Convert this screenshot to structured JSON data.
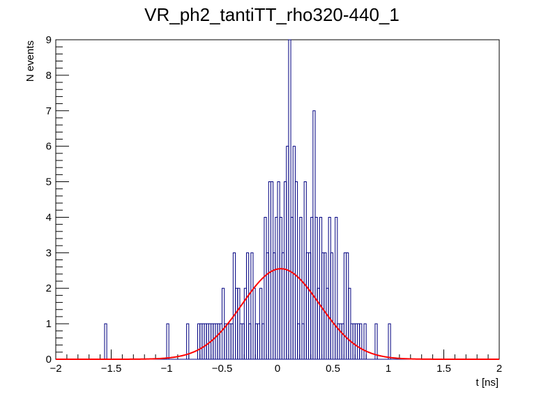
{
  "chart_data": {
    "type": "histogram",
    "title": "VR_ph2_tantiTT_rho320-440_1",
    "xlabel": "t [ns]",
    "ylabel": "N events",
    "xlim": [
      -2,
      2
    ],
    "ylim": [
      0,
      9
    ],
    "x_ticks": [
      -2,
      -1.5,
      -1,
      -0.5,
      0,
      0.5,
      1,
      1.5,
      2
    ],
    "x_tick_labels": [
      "−2",
      "−1.5",
      "−1",
      "−0.5",
      "0",
      "0.5",
      "1",
      "1.5",
      "2"
    ],
    "y_ticks": [
      0,
      1,
      2,
      3,
      4,
      5,
      6,
      7,
      8,
      9
    ],
    "y_tick_labels": [
      "0",
      "1",
      "2",
      "3",
      "4",
      "5",
      "6",
      "7",
      "8",
      "9"
    ],
    "bin_width": 0.02,
    "histogram": {
      "name": "data",
      "color": "#000080",
      "bins": [
        [
          -1.56,
          1
        ],
        [
          -1.0,
          1
        ],
        [
          -0.82,
          1
        ],
        [
          -0.72,
          1
        ],
        [
          -0.7,
          1
        ],
        [
          -0.68,
          1
        ],
        [
          -0.66,
          1
        ],
        [
          -0.64,
          1
        ],
        [
          -0.62,
          1
        ],
        [
          -0.6,
          1
        ],
        [
          -0.58,
          1
        ],
        [
          -0.56,
          1
        ],
        [
          -0.54,
          1
        ],
        [
          -0.52,
          1
        ],
        [
          -0.5,
          2
        ],
        [
          -0.48,
          1
        ],
        [
          -0.46,
          1
        ],
        [
          -0.44,
          1
        ],
        [
          -0.42,
          1
        ],
        [
          -0.4,
          3
        ],
        [
          -0.38,
          2
        ],
        [
          -0.36,
          2
        ],
        [
          -0.34,
          1
        ],
        [
          -0.32,
          1
        ],
        [
          -0.3,
          2
        ],
        [
          -0.28,
          3
        ],
        [
          -0.26,
          1
        ],
        [
          -0.24,
          3
        ],
        [
          -0.22,
          2
        ],
        [
          -0.2,
          1
        ],
        [
          -0.18,
          1
        ],
        [
          -0.16,
          2
        ],
        [
          -0.14,
          1
        ],
        [
          -0.12,
          4
        ],
        [
          -0.1,
          3
        ],
        [
          -0.08,
          5
        ],
        [
          -0.06,
          5
        ],
        [
          -0.04,
          3
        ],
        [
          -0.02,
          4
        ],
        [
          0.0,
          5
        ],
        [
          0.02,
          4
        ],
        [
          0.04,
          3
        ],
        [
          0.06,
          5
        ],
        [
          0.08,
          6
        ],
        [
          0.1,
          9
        ],
        [
          0.12,
          4
        ],
        [
          0.14,
          6
        ],
        [
          0.16,
          5
        ],
        [
          0.18,
          1
        ],
        [
          0.2,
          4
        ],
        [
          0.22,
          1
        ],
        [
          0.24,
          5
        ],
        [
          0.26,
          3
        ],
        [
          0.28,
          3
        ],
        [
          0.3,
          4
        ],
        [
          0.32,
          7
        ],
        [
          0.34,
          4
        ],
        [
          0.36,
          2
        ],
        [
          0.38,
          4
        ],
        [
          0.4,
          3
        ],
        [
          0.42,
          3
        ],
        [
          0.44,
          2
        ],
        [
          0.46,
          4
        ],
        [
          0.48,
          3
        ],
        [
          0.5,
          1
        ],
        [
          0.52,
          4
        ],
        [
          0.54,
          1
        ],
        [
          0.56,
          1
        ],
        [
          0.58,
          1
        ],
        [
          0.6,
          3
        ],
        [
          0.62,
          3
        ],
        [
          0.64,
          2
        ],
        [
          0.66,
          1
        ],
        [
          0.68,
          1
        ],
        [
          0.7,
          1
        ],
        [
          0.72,
          1
        ],
        [
          0.74,
          1
        ],
        [
          0.78,
          1
        ],
        [
          0.88,
          1
        ],
        [
          1.0,
          1
        ]
      ]
    },
    "fit": {
      "name": "gaussian fit",
      "color": "#ff0000",
      "function": "gaussian",
      "amplitude": 2.55,
      "mean": 0.03,
      "sigma": 0.35
    }
  }
}
